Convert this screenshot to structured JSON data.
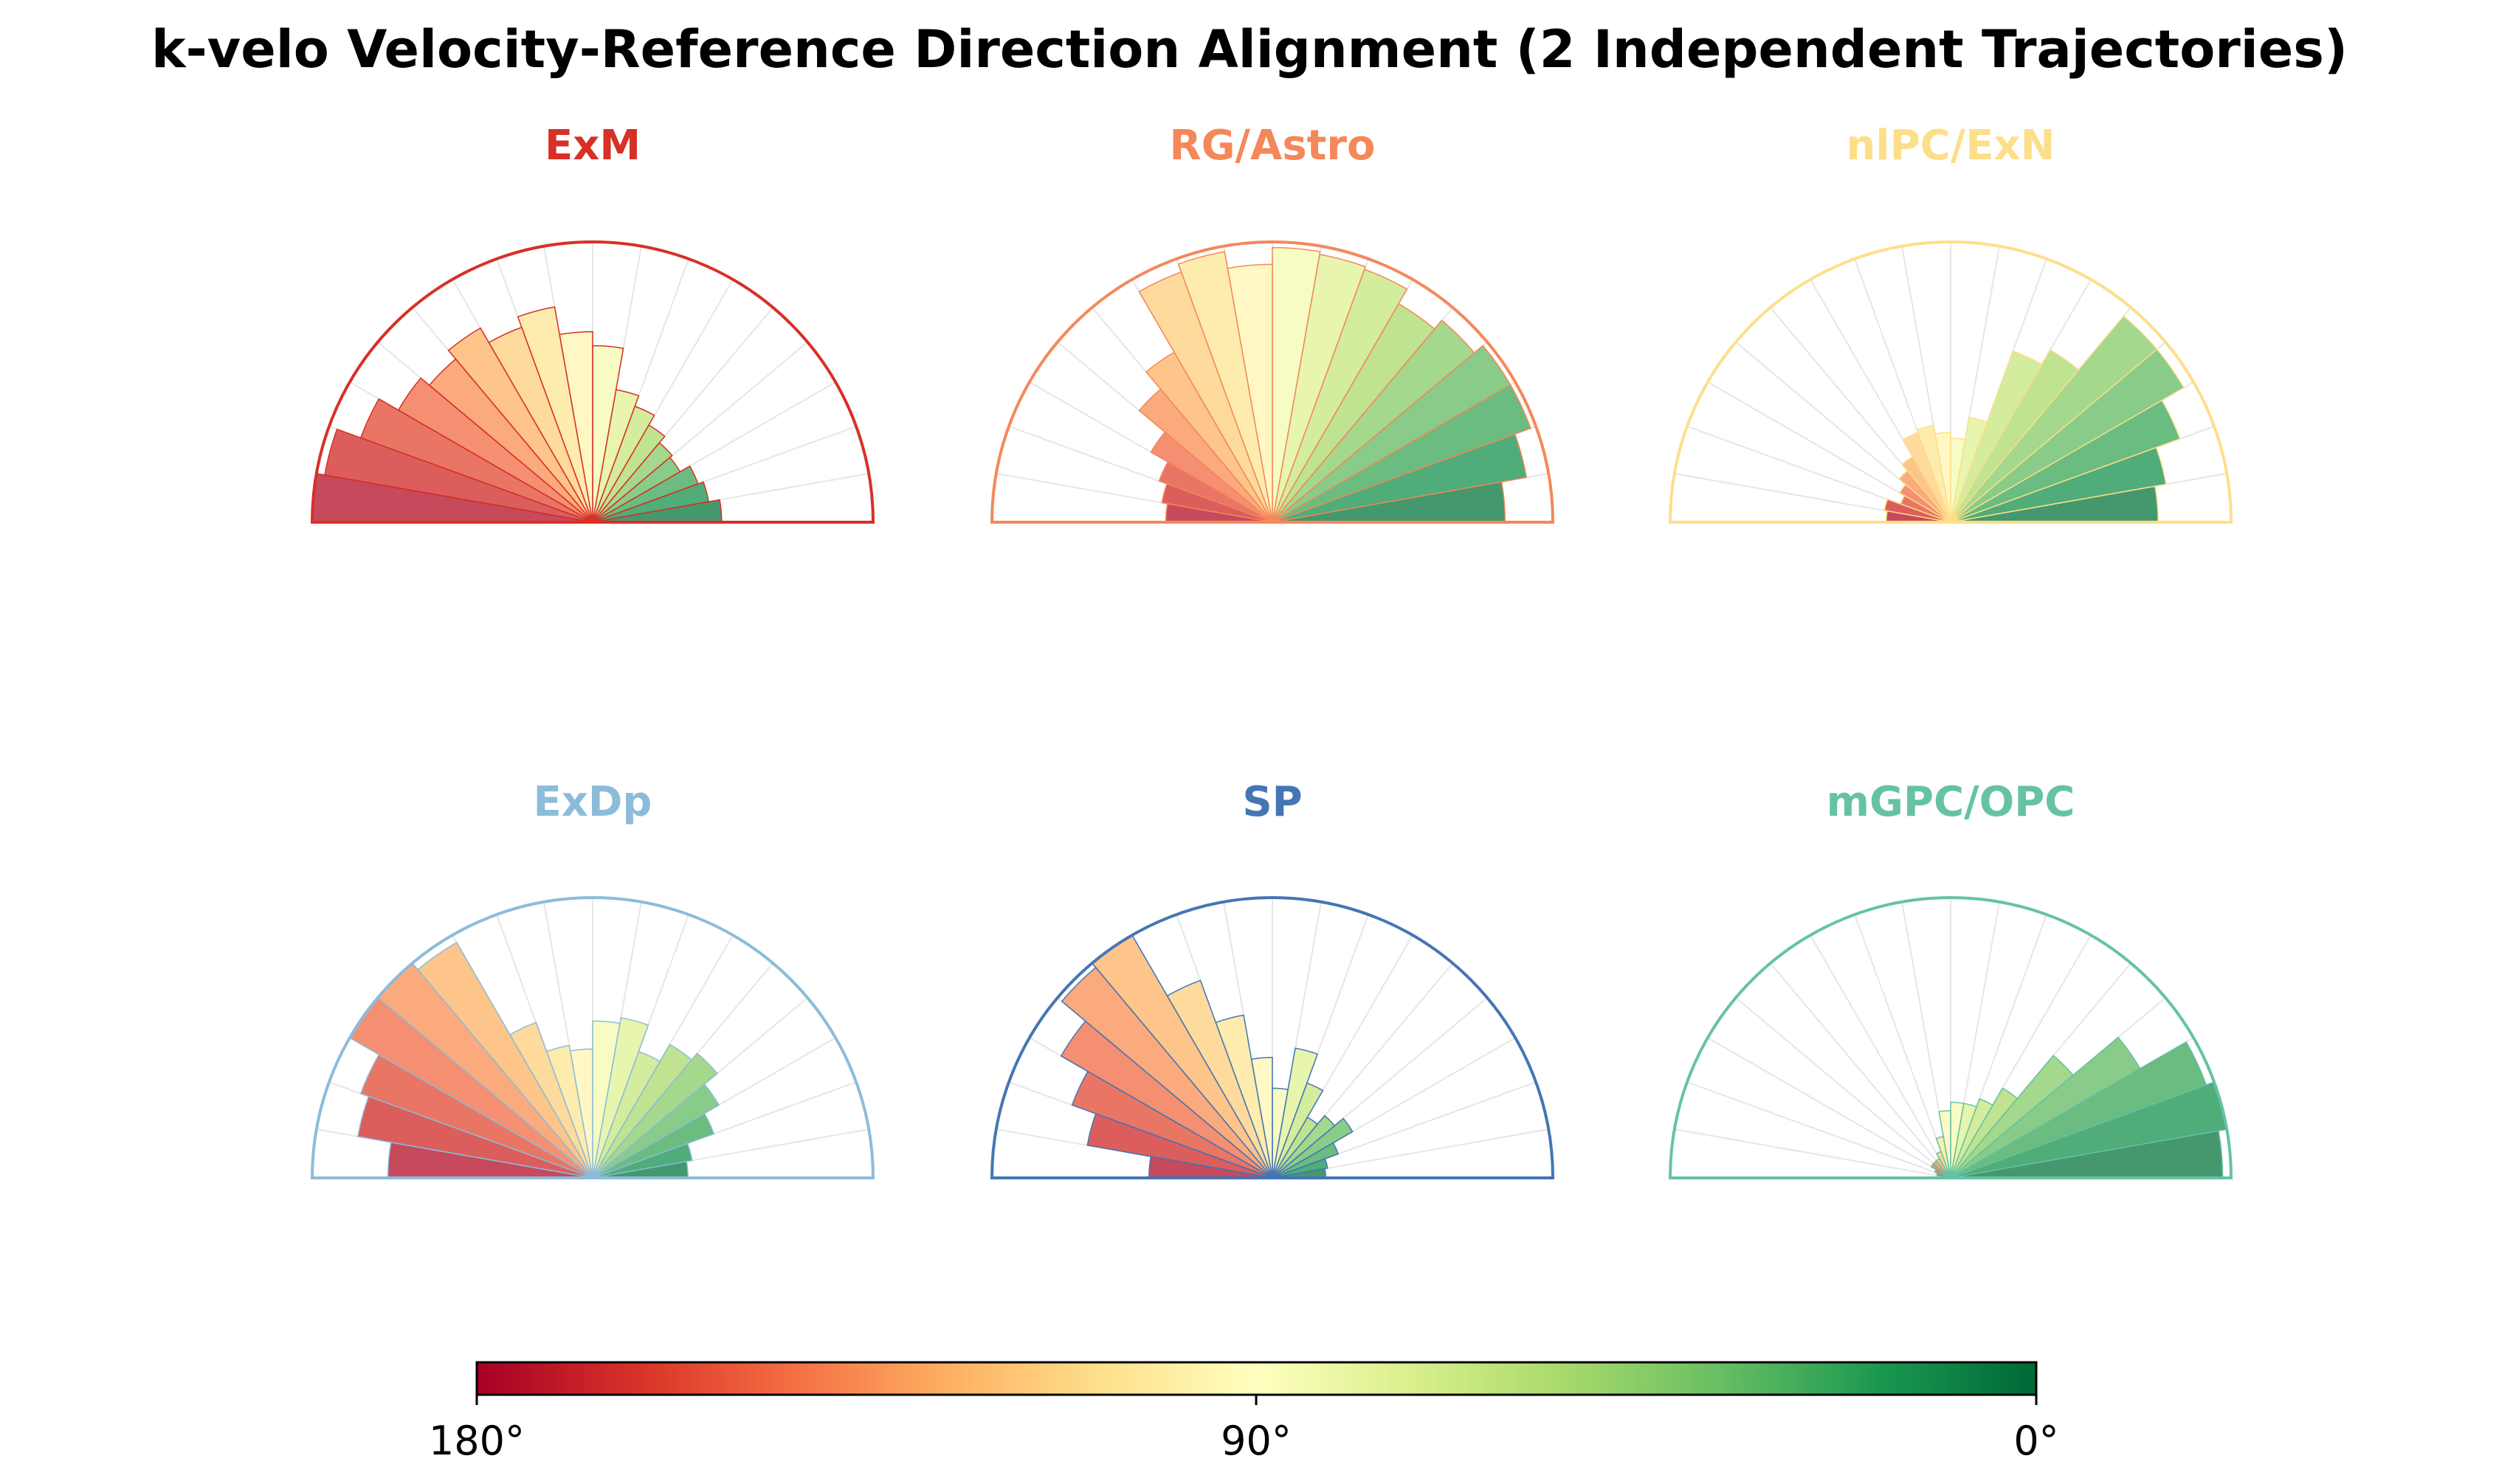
{
  "title": "k-velo Velocity-Reference Direction Alignment (2 Independent Trajectories)",
  "chart_data": {
    "type": "polar-bar",
    "theta_range_deg": [
      0,
      180
    ],
    "bins": 18,
    "bin_width_deg": 10,
    "r_max": 1.0,
    "panels": [
      {
        "name": "ExM",
        "color": "#d73027",
        "values": [
          0.46,
          0.42,
          0.4,
          0.36,
          0.37,
          0.4,
          0.44,
          0.48,
          0.63,
          0.68,
          0.78,
          0.74,
          0.8,
          0.76,
          0.8,
          0.88,
          0.97,
          1.0
        ]
      },
      {
        "name": "RG/Astro",
        "color": "#f4885a",
        "values": [
          0.83,
          0.92,
          0.98,
          0.98,
          0.94,
          0.9,
          0.96,
          0.97,
          0.98,
          0.92,
          0.98,
          0.95,
          0.7,
          0.62,
          0.5,
          0.43,
          0.4,
          0.38
        ]
      },
      {
        "name": "nlPC/ExN",
        "color": "#fddf8a",
        "values": [
          0.74,
          0.78,
          0.87,
          0.96,
          0.96,
          0.71,
          0.65,
          0.38,
          0.3,
          0.32,
          0.35,
          0.34,
          0.27,
          0.24,
          0.21,
          0.19,
          0.24,
          0.23
        ]
      },
      {
        "name": "ExDp",
        "color": "#8cbcda",
        "values": [
          0.34,
          0.36,
          0.46,
          0.52,
          0.58,
          0.55,
          0.48,
          0.58,
          0.56,
          0.46,
          0.48,
          0.59,
          0.97,
          1.0,
          1.0,
          0.88,
          0.85,
          0.73
        ]
      },
      {
        "name": "SP",
        "color": "#4575b4",
        "values": [
          0.19,
          0.2,
          0.25,
          0.33,
          0.29,
          0.25,
          0.36,
          0.47,
          0.32,
          0.43,
          0.59,
          0.75,
          1.0,
          0.98,
          0.87,
          0.76,
          0.67,
          0.44
        ]
      },
      {
        "name": "mGPC/OPC",
        "color": "#66c2a5",
        "values": [
          0.97,
          1.0,
          0.97,
          0.78,
          0.57,
          0.37,
          0.3,
          0.27,
          0.27,
          0.24,
          0.15,
          0.1,
          0.08,
          0.08,
          0.08,
          0.06,
          0.05,
          0.04
        ]
      }
    ],
    "colorbar": {
      "colormap": "RdYlGn",
      "range_deg": [
        180,
        0
      ],
      "ticks": [
        "180°",
        "90°",
        "0°"
      ],
      "stops": [
        "#a50026",
        "#d73027",
        "#f46d43",
        "#fdae61",
        "#fee08b",
        "#ffffbf",
        "#d9ef8b",
        "#a6d96a",
        "#66bd63",
        "#1a9850",
        "#006837"
      ]
    }
  }
}
